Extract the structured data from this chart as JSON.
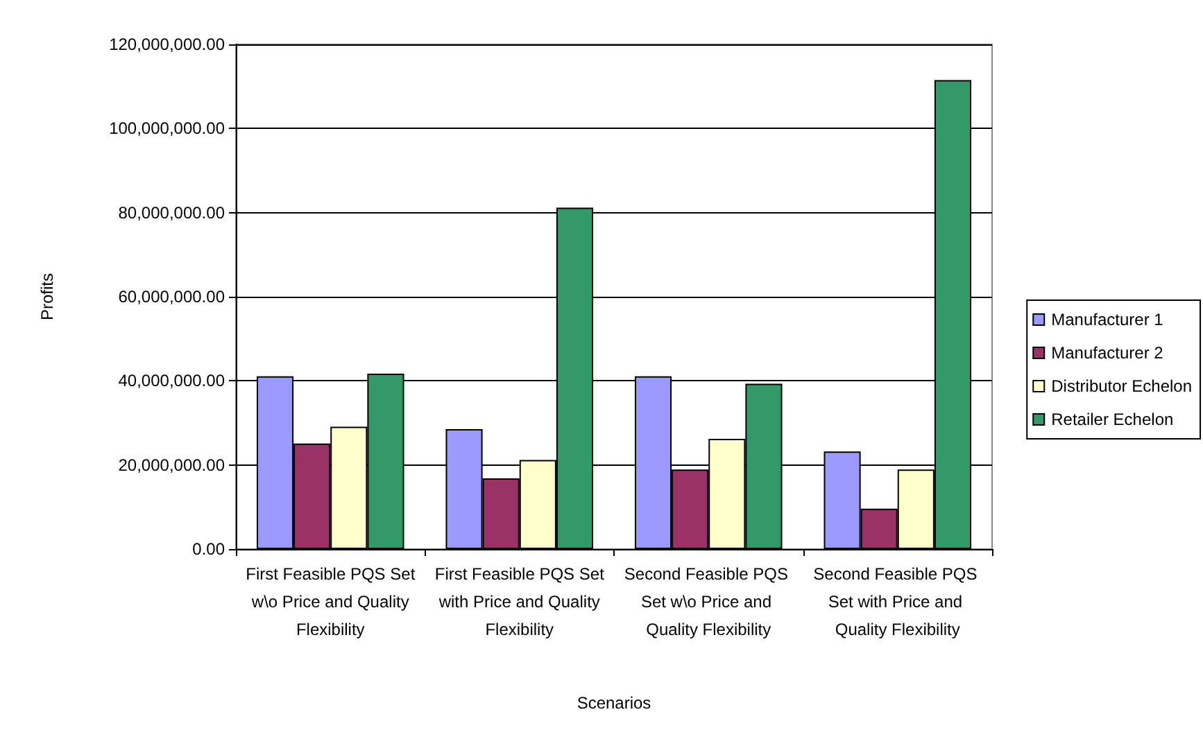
{
  "chart_data": {
    "type": "bar",
    "xlabel": "Scenarios",
    "ylabel": "Profits",
    "categories": [
      "First Feasible PQS Set w\\o Price and Quality Flexibility",
      "First Feasible PQS Set with Price and Quality Flexibility",
      "Second Feasible PQS Set w\\o Price and Quality Flexibility",
      "Second Feasible PQS Set with Price and Quality Flexibility"
    ],
    "series": [
      {
        "name": "Manufacturer 1",
        "color": "#9999ff",
        "values": [
          41100000,
          28500000,
          41100000,
          23200000
        ]
      },
      {
        "name": "Manufacturer 2",
        "color": "#993366",
        "values": [
          25100000,
          16800000,
          18900000,
          9600000
        ]
      },
      {
        "name": "Distributor Echelon",
        "color": "#ffffcc",
        "values": [
          29100000,
          21200000,
          26200000,
          18900000
        ]
      },
      {
        "name": "Retailer Echelon",
        "color": "#339966",
        "values": [
          41700000,
          81200000,
          39300000,
          111500000
        ]
      }
    ],
    "ylim": [
      0,
      120000000
    ],
    "yticks": [
      {
        "value": 0,
        "label": "0.00"
      },
      {
        "value": 20000000,
        "label": "20,000,000.00"
      },
      {
        "value": 40000000,
        "label": "40,000,000.00"
      },
      {
        "value": 60000000,
        "label": "60,000,000.00"
      },
      {
        "value": 80000000,
        "label": "80,000,000.00"
      },
      {
        "value": 100000000,
        "label": "100,000,000.00"
      },
      {
        "value": 120000000,
        "label": "120,000,000.00"
      }
    ],
    "grid": "y",
    "legend": "right"
  }
}
